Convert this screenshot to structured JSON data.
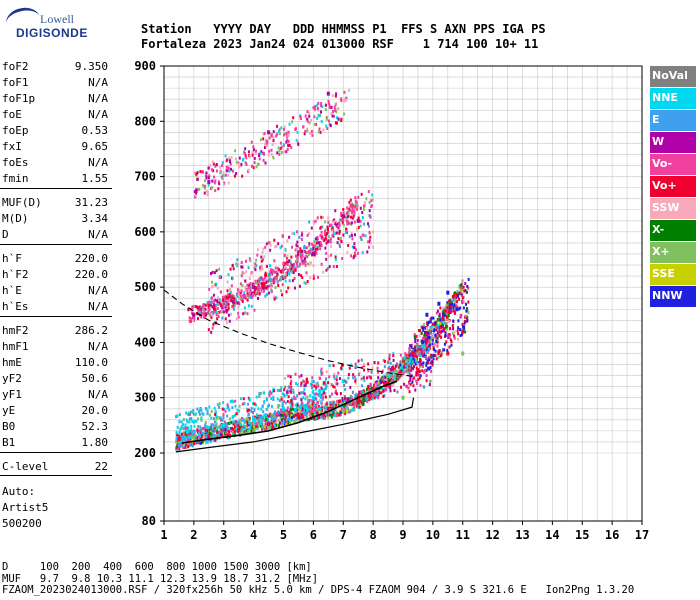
{
  "logo": {
    "top": "Lowell",
    "bottom": "DIGISONDE"
  },
  "header": {
    "line1": "Station   YYYY DAY   DDD HHMMSS P1  FFS S AXN PPS IGA PS",
    "line2": "Fortaleza 2023 Jan24 024 013000 RSF    1 714 100 10+ 11"
  },
  "params": [
    {
      "k": "foF2",
      "v": "9.350"
    },
    {
      "k": "foF1",
      "v": "N/A"
    },
    {
      "k": "foF1p",
      "v": "N/A"
    },
    {
      "k": "foE",
      "v": "N/A"
    },
    {
      "k": "foEp",
      "v": "0.53"
    },
    {
      "k": "fxI",
      "v": "9.65"
    },
    {
      "k": "foEs",
      "v": "N/A"
    },
    {
      "k": "fmin",
      "v": "1.55"
    },
    {
      "k": "MUF(D)",
      "v": "31.23"
    },
    {
      "k": "M(D)",
      "v": "3.34"
    },
    {
      "k": "D",
      "v": "N/A"
    },
    {
      "k": "h`F",
      "v": "220.0"
    },
    {
      "k": "h`F2",
      "v": "220.0"
    },
    {
      "k": "h`E",
      "v": "N/A"
    },
    {
      "k": "h`Es",
      "v": "N/A"
    },
    {
      "k": "hmF2",
      "v": "286.2"
    },
    {
      "k": "hmF1",
      "v": "N/A"
    },
    {
      "k": "hmE",
      "v": "110.0"
    },
    {
      "k": "yF2",
      "v": "50.6"
    },
    {
      "k": "yF1",
      "v": "N/A"
    },
    {
      "k": "yE",
      "v": "20.0"
    },
    {
      "k": "B0",
      "v": "52.3"
    },
    {
      "k": "B1",
      "v": "1.80"
    },
    {
      "k": "C-level",
      "v": "22"
    }
  ],
  "auto": {
    "label": "Auto:",
    "name": "Artist5",
    "code": "500200"
  },
  "legend": [
    {
      "label": "NoVal",
      "color": "#808080"
    },
    {
      "label": "NNE",
      "color": "#00d8f0"
    },
    {
      "label": "E",
      "color": "#40a0f0"
    },
    {
      "label": "W",
      "color": "#b000a8"
    },
    {
      "label": "Vo-",
      "color": "#f040a0"
    },
    {
      "label": "Vo+",
      "color": "#f00030"
    },
    {
      "label": "SSW",
      "color": "#f8a8b8"
    },
    {
      "label": "X-",
      "color": "#008000"
    },
    {
      "label": "X+",
      "color": "#80c060"
    },
    {
      "label": "SSE",
      "color": "#c8d000"
    },
    {
      "label": "NNW",
      "color": "#2020e0"
    }
  ],
  "chart_data": {
    "type": "scatter",
    "title": "",
    "xlabel": "",
    "ylabel": "",
    "xlim": [
      1,
      17
    ],
    "ylim": [
      80,
      900
    ],
    "x_ticks": [
      1,
      2,
      3,
      4,
      5,
      6,
      7,
      8,
      9,
      10,
      11,
      12,
      13,
      14,
      15,
      16,
      17
    ],
    "y_ticks": [
      80,
      200,
      300,
      400,
      500,
      600,
      700,
      800,
      900
    ],
    "grid": true,
    "series": [
      {
        "name": "Vo+",
        "values": [
          [
            1.5,
            225
          ],
          [
            2.5,
            230
          ],
          [
            3.5,
            242
          ],
          [
            4.5,
            252
          ],
          [
            5.5,
            265
          ],
          [
            6.5,
            280
          ],
          [
            7.5,
            300
          ],
          [
            8.5,
            325
          ],
          [
            9.5,
            350
          ],
          [
            10.5,
            380
          ],
          [
            11.0,
            420
          ]
        ]
      },
      {
        "name": "NNE",
        "values": [
          [
            1.8,
            240
          ],
          [
            3.0,
            250
          ],
          [
            4.0,
            260
          ],
          [
            5.0,
            280
          ],
          [
            6.0,
            300
          ],
          [
            7.0,
            330
          ]
        ]
      },
      {
        "name": "NNW",
        "values": [
          [
            9.8,
            450
          ],
          [
            10.2,
            470
          ],
          [
            10.5,
            490
          ],
          [
            10.8,
            460
          ]
        ]
      },
      {
        "name": "X+",
        "values": [
          [
            2.0,
            228
          ],
          [
            4.5,
            245
          ],
          [
            7.0,
            275
          ],
          [
            9.0,
            300
          ],
          [
            11.0,
            380
          ]
        ]
      },
      {
        "name": "W",
        "values": [
          [
            2.0,
            450
          ],
          [
            4.0,
            500
          ],
          [
            6.0,
            560
          ],
          [
            7.5,
            620
          ],
          [
            2.5,
            690
          ],
          [
            4.5,
            780
          ],
          [
            6.5,
            850
          ]
        ]
      }
    ],
    "profile_solid": [
      [
        1.4,
        202
      ],
      [
        2.5,
        210
      ],
      [
        4.0,
        220
      ],
      [
        5.5,
        236
      ],
      [
        7.0,
        252
      ],
      [
        8.5,
        270
      ],
      [
        9.3,
        283
      ],
      [
        9.35,
        300
      ]
    ],
    "muf_dashed": [
      [
        1.0,
        495
      ],
      [
        1.6,
        470
      ],
      [
        2.5,
        440
      ],
      [
        3.5,
        418
      ],
      [
        4.5,
        398
      ],
      [
        5.5,
        382
      ],
      [
        6.5,
        367
      ],
      [
        7.5,
        355
      ],
      [
        8.5,
        345
      ],
      [
        9.4,
        338
      ]
    ],
    "trace_black": [
      [
        1.6,
        218
      ],
      [
        2.5,
        225
      ],
      [
        3.5,
        232
      ],
      [
        4.5,
        240
      ],
      [
        5.5,
        255
      ],
      [
        6.5,
        275
      ],
      [
        7.5,
        300
      ],
      [
        8.3,
        320
      ],
      [
        8.8,
        330
      ]
    ]
  },
  "footer": {
    "line1": "D     100  200  400  600  800 1000 1500 3000 [km]",
    "line2": "MUF   9.7  9.8 10.3 11.1 12.3 13.9 18.7 31.2 [MHz]",
    "line3": "FZAOM_2023024013000.RSF / 320fx256h 50 kHz 5.0 km / DPS-4 FZAOM 904 / 3.9 S 321.6 E   Ion2Png 1.3.20"
  }
}
